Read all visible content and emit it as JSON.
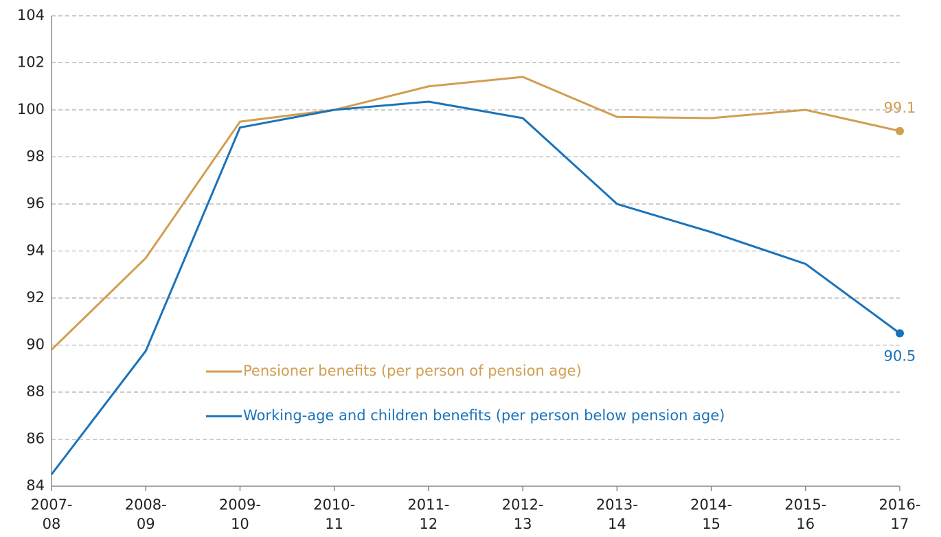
{
  "chart_data": {
    "type": "line",
    "categories": [
      "2007-08",
      "2008-09",
      "2009-10",
      "2010-11",
      "2011-12",
      "2012-13",
      "2013-14",
      "2014-15",
      "2015-16",
      "2016-17"
    ],
    "series": [
      {
        "name": "Pensioner benefits (per person of pension age)",
        "color": "#d19e52",
        "values": [
          89.8,
          93.7,
          99.5,
          100.0,
          101.0,
          101.4,
          99.7,
          99.65,
          100.0,
          99.1
        ]
      },
      {
        "name": "Working-age and children benefits (per person below pension age)",
        "color": "#1a73ba",
        "values": [
          84.5,
          89.75,
          99.25,
          100.0,
          100.35,
          99.65,
          96.0,
          94.8,
          93.45,
          90.5
        ]
      }
    ],
    "ylim": [
      84,
      104
    ],
    "yticks": [
      84,
      86,
      88,
      90,
      92,
      94,
      96,
      98,
      100,
      102,
      104
    ],
    "grid": true
  }
}
